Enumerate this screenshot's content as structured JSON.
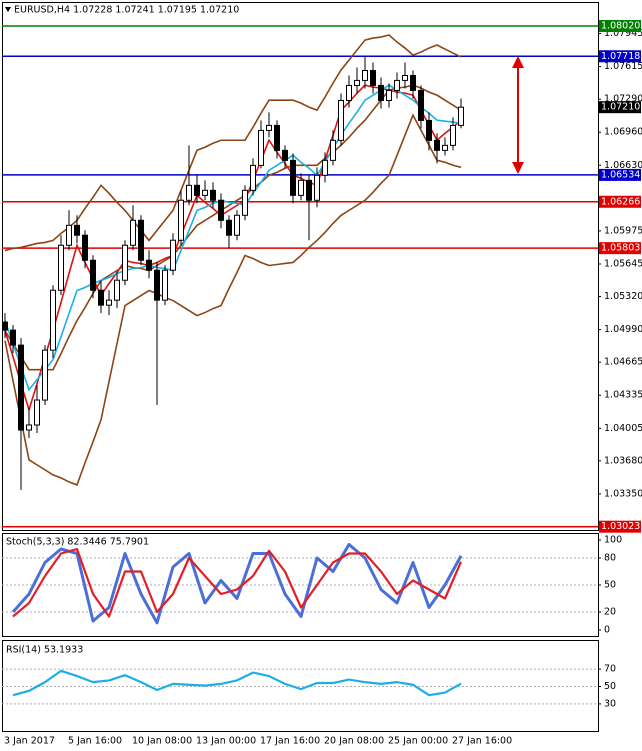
{
  "chart_data": [
    {
      "type": "candlestick",
      "title": "EURUSD,H4  1.07228 1.07241 1.07195 1.07210",
      "categories": [
        "3 Jan 2017",
        null,
        null,
        null,
        null,
        null,
        null,
        null,
        "5 Jan 16:00",
        null,
        null,
        null,
        null,
        null,
        null,
        null,
        "10 Jan 08:00",
        null,
        null,
        null,
        null,
        null,
        null,
        null,
        "13 Jan 00:00",
        null,
        null,
        null,
        null,
        null,
        null,
        null,
        "17 Jan 16:00",
        null,
        null,
        null,
        null,
        null,
        null,
        null,
        "20 Jan 08:00",
        null,
        null,
        null,
        null,
        null,
        null,
        null,
        "25 Jan 00:00",
        null,
        null,
        null,
        null,
        null,
        null,
        null,
        "27 Jan 16:00",
        null
      ],
      "open": [
        1.05065,
        1.04985,
        1.04835,
        1.03988,
        1.04038,
        1.04287,
        1.04785,
        1.05383,
        1.05832,
        1.06031,
        1.05932,
        1.05682,
        1.05383,
        1.05234,
        1.05284,
        1.05483,
        1.05832,
        1.06081,
        1.05682,
        1.05583,
        1.05284,
        1.05583,
        1.05882,
        1.06281,
        1.0643,
        1.0633,
        1.0638,
        1.06281,
        1.06081,
        1.05932,
        1.06131,
        1.0638,
        1.06629,
        1.06978,
        1.07028,
        1.06779,
        1.06679,
        1.0633,
        1.0648,
        1.06281,
        1.0653,
        1.06679,
        1.06879,
        1.07277,
        1.07427,
        1.07477,
        1.07576,
        1.07427,
        1.07277,
        1.07377,
        1.07477,
        1.07526,
        1.07377,
        1.07078,
        1.06879,
        1.06779,
        1.06829,
        1.07028
      ],
      "high": [
        1.05154,
        1.05035,
        1.04905,
        1.04207,
        1.04437,
        1.04835,
        1.05433,
        1.05932,
        1.06181,
        1.06131,
        1.05982,
        1.05732,
        1.05483,
        1.05383,
        1.05563,
        1.05882,
        1.06231,
        1.06131,
        1.05782,
        1.05663,
        1.05633,
        1.05952,
        1.0638,
        1.06829,
        1.0653,
        1.0648,
        1.0646,
        1.0635,
        1.06131,
        1.06181,
        1.0643,
        1.06699,
        1.07078,
        1.07158,
        1.07078,
        1.06829,
        1.06749,
        1.0655,
        1.0653,
        1.06609,
        1.06759,
        1.06978,
        1.07347,
        1.07526,
        1.07606,
        1.07726,
        1.07656,
        1.07506,
        1.07447,
        1.07556,
        1.07656,
        1.07576,
        1.07427,
        1.07158,
        1.06948,
        1.06908,
        1.07108,
        1.07297
      ],
      "low": [
        1.04905,
        1.04756,
        1.0339,
        1.03908,
        1.03958,
        1.04237,
        1.04706,
        1.05334,
        1.05782,
        1.05852,
        1.05603,
        1.05304,
        1.05154,
        1.05134,
        1.05204,
        1.05433,
        1.05782,
        1.05633,
        1.05503,
        1.04237,
        1.05234,
        1.05533,
        1.05832,
        1.06231,
        1.06251,
        1.06281,
        1.06201,
        1.06001,
        1.05802,
        1.05882,
        1.06081,
        1.0633,
        1.06599,
        1.06908,
        1.06699,
        1.06599,
        1.06251,
        1.06281,
        1.05882,
        1.06211,
        1.0646,
        1.06629,
        1.06829,
        1.07207,
        1.07347,
        1.07397,
        1.07347,
        1.07197,
        1.07207,
        1.07297,
        1.07397,
        1.07297,
        1.06998,
        1.06779,
        1.06649,
        1.06729,
        1.06779,
        1.06998
      ],
      "close": [
        1.04985,
        1.04835,
        1.03988,
        1.04038,
        1.04287,
        1.04785,
        1.05383,
        1.05832,
        1.06031,
        1.05932,
        1.05682,
        1.05383,
        1.05234,
        1.05284,
        1.05483,
        1.05832,
        1.06081,
        1.05682,
        1.05583,
        1.05284,
        1.05583,
        1.05882,
        1.06281,
        1.0643,
        1.0633,
        1.0638,
        1.06281,
        1.06081,
        1.05932,
        1.06131,
        1.0638,
        1.06629,
        1.06978,
        1.07028,
        1.06779,
        1.06679,
        1.0633,
        1.0648,
        1.06281,
        1.0653,
        1.06679,
        1.06879,
        1.07277,
        1.07427,
        1.07477,
        1.07576,
        1.07427,
        1.07277,
        1.07377,
        1.07477,
        1.07526,
        1.07377,
        1.07078,
        1.06879,
        1.06779,
        1.06829,
        1.07028,
        1.0721
      ],
      "candle_color": "#000000",
      "series": [
        {
          "color": "#8b4513",
          "values": [
            1.0578,
            1.058,
            1.0581,
            1.0583,
            1.0585,
            1.0586,
            1.0588,
            1.0595,
            1.0601,
            1.0608,
            1.062,
            1.0631,
            1.0643,
            1.0635,
            1.0626,
            1.0618,
            1.0608,
            1.0598,
            1.0588,
            1.0598,
            1.0608,
            1.0618,
            1.0638,
            1.0658,
            1.0678,
            1.0681,
            1.0685,
            1.0688,
            1.0688,
            1.0688,
            1.0688,
            1.0701,
            1.0715,
            1.0728,
            1.0728,
            1.0728,
            1.0728,
            1.0725,
            1.0721,
            1.0718,
            1.0731,
            1.0745,
            1.0758,
            1.0768,
            1.0778,
            1.0788,
            1.079,
            1.0791,
            1.0793,
            1.0786,
            1.078,
            1.0773,
            1.0776,
            1.078,
            1.0783,
            1.0779,
            1.0775,
            1.0771
          ]
        },
        {
          "color": "#8b4513",
          "values": [
            1.0498,
            1.0485,
            1.0472,
            1.0459,
            1.0459,
            1.0459,
            1.0459,
            1.0475,
            1.0492,
            1.0508,
            1.0521,
            1.0535,
            1.0548,
            1.0553,
            1.0558,
            1.0563,
            1.0561,
            1.056,
            1.0558,
            1.0563,
            1.0568,
            1.0573,
            1.0583,
            1.0593,
            1.0603,
            1.0608,
            1.0613,
            1.0618,
            1.0623,
            1.0628,
            1.0633,
            1.064,
            1.0646,
            1.0653,
            1.0656,
            1.066,
            1.0663,
            1.0663,
            1.0663,
            1.0663,
            1.067,
            1.0676,
            1.0683,
            1.0691,
            1.07,
            1.0708,
            1.0718,
            1.0728,
            1.0738,
            1.074,
            1.0741,
            1.0743,
            1.074,
            1.0736,
            1.0733,
            1.0728,
            1.0723,
            1.0718
          ]
        },
        {
          "color": "#8b4513",
          "values": [
            1.0488,
            1.0448,
            1.0409,
            1.0369,
            1.0364,
            1.0359,
            1.0354,
            1.0351,
            1.0347,
            1.0344,
            1.0366,
            1.0387,
            1.0409,
            1.0447,
            1.0485,
            1.0523,
            1.0528,
            1.0533,
            1.0538,
            1.0535,
            1.0531,
            1.0528,
            1.0523,
            1.0518,
            1.0513,
            1.0516,
            1.052,
            1.0523,
            1.054,
            1.0556,
            1.0573,
            1.057,
            1.0566,
            1.0563,
            1.0564,
            1.0565,
            1.0566,
            1.0573,
            1.0581,
            1.0588,
            1.0596,
            1.0605,
            1.0613,
            1.0618,
            1.0623,
            1.0628,
            1.0636,
            1.0645,
            1.0653,
            1.0673,
            1.0693,
            1.0713,
            1.0698,
            1.0683,
            1.0668,
            1.0666,
            1.0663,
            1.0661
          ]
        },
        {
          "color": "#e01010",
          "values": [
            1.0498,
            1.0472,
            1.0445,
            1.0419,
            1.0445,
            1.0472,
            1.0498,
            1.0526,
            1.0555,
            1.0583,
            1.0566,
            1.055,
            1.0533,
            1.0545,
            1.0556,
            1.0568,
            1.0566,
            1.0565,
            1.0563,
            1.0566,
            1.057,
            1.0573,
            1.0593,
            1.0613,
            1.0633,
            1.0626,
            1.062,
            1.0613,
            1.0618,
            1.0623,
            1.0628,
            1.0648,
            1.0668,
            1.0688,
            1.0676,
            1.0665,
            1.0653,
            1.065,
            1.0646,
            1.0643,
            1.0668,
            1.0693,
            1.0718,
            1.0726,
            1.0735,
            1.0743,
            1.0741,
            1.074,
            1.0738,
            1.0736,
            1.0735,
            1.0733,
            1.0718,
            1.0703,
            1.0688,
            1.0695,
            1.0701,
            1.0708
          ]
        },
        {
          "color": "#1ab0e8",
          "values": [
            1.0508,
            1.0485,
            1.0462,
            1.0439,
            1.0449,
            1.0459,
            1.0469,
            1.0492,
            1.0515,
            1.0538,
            1.0541,
            1.0545,
            1.0548,
            1.0551,
            1.0555,
            1.0558,
            1.056,
            1.0561,
            1.0563,
            1.0561,
            1.056,
            1.0558,
            1.0578,
            1.0598,
            1.0618,
            1.0621,
            1.0625,
            1.0628,
            1.0626,
            1.0625,
            1.0623,
            1.0635,
            1.0646,
            1.0658,
            1.0663,
            1.0668,
            1.0673,
            1.0666,
            1.066,
            1.0653,
            1.0666,
            1.068,
            1.0693,
            1.0705,
            1.0716,
            1.0728,
            1.0733,
            1.0738,
            1.0743,
            1.0738,
            1.0733,
            1.0728,
            1.0721,
            1.0715,
            1.0708,
            1.0707,
            1.0706,
            1.0705
          ]
        }
      ],
      "ylim": [
        1.0299,
        1.081
      ],
      "yticks": [
        1.07945,
        1.07615,
        {
          "value": 1.0729,
          "label": "1.07290"
        },
        {
          "value": 1.0696,
          "label": "1.06960"
        },
        {
          "value": 1.0663,
          "label": "1.06630"
        },
        1.05975,
        1.05645,
        {
          "value": 1.0532,
          "label": "1.05320"
        },
        {
          "value": 1.0499,
          "label": "1.04990"
        },
        1.04665,
        1.04335,
        1.04005,
        {
          "value": 1.0368,
          "label": "1.03680"
        },
        {
          "value": 1.0335,
          "label": "1.03350"
        }
      ],
      "levels": [
        {
          "value": 1.0802,
          "label": "1.08020",
          "color": "#008000"
        },
        {
          "value": 1.07718,
          "label": "1.07718",
          "color": "#0000cd"
        },
        {
          "value": 1.06534,
          "label": "1.06534",
          "color": "#0000cd"
        },
        {
          "value": 1.06266,
          "label": "1.06266",
          "color": "#e00000"
        },
        {
          "value": 1.05803,
          "label": "1.05803",
          "color": "#e00000"
        },
        {
          "value": 1.03023,
          "label": "1.03023",
          "color": "#e00000"
        }
      ],
      "current": {
        "value": 1.0721,
        "label": "1.07210",
        "color": "#000000"
      }
    },
    {
      "type": "line",
      "title": "Stoch(5,3,3) 82.3446 75.7901",
      "series": [
        {
          "color": "#4a6fd8",
          "values": [
            20,
            40,
            75,
            90,
            85,
            10,
            25,
            85,
            40,
            8,
            70,
            85,
            30,
            55,
            35,
            85,
            85,
            40,
            15,
            80,
            65,
            95,
            80,
            45,
            30,
            75,
            25,
            50,
            82.3446
          ]
        },
        {
          "color": "#e41e26",
          "values": [
            15,
            30,
            60,
            85,
            90,
            40,
            15,
            65,
            65,
            20,
            40,
            80,
            60,
            40,
            45,
            60,
            88,
            65,
            25,
            50,
            75,
            85,
            85,
            65,
            40,
            55,
            45,
            35,
            75.7901
          ]
        }
      ],
      "ylim": [
        0,
        100
      ],
      "yticks": [
        0,
        20,
        50,
        80,
        100
      ],
      "grid": true
    },
    {
      "type": "line",
      "title": "RSI(14) 53.1933",
      "series": [
        {
          "color": "#1eaee6",
          "values": [
            40,
            45,
            55,
            68,
            62,
            55,
            57,
            63,
            55,
            46,
            53,
            52,
            51,
            53,
            57,
            66,
            62,
            53,
            47,
            54,
            54,
            58,
            55,
            53,
            55,
            52,
            40,
            43,
            53.1933
          ]
        }
      ],
      "ylim": [
        0,
        100
      ],
      "yticks": [
        30,
        50,
        70
      ],
      "grid": true
    }
  ]
}
